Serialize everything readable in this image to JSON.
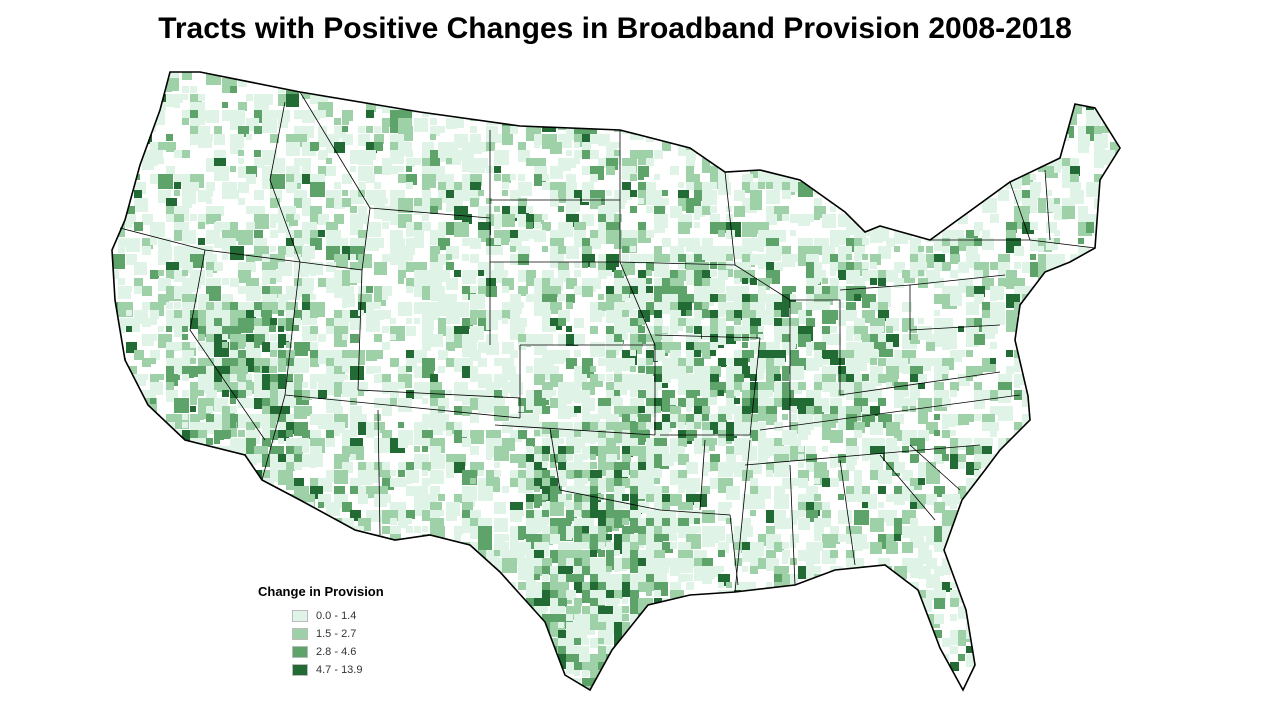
{
  "title": "Tracts with Positive Changes in Broadband Provision 2008-2018",
  "legend": {
    "title": "Change in Provision",
    "classes": [
      {
        "label": "0.0 - 1.4",
        "color": "#dff3e6"
      },
      {
        "label": "1.5 - 2.7",
        "color": "#9fd1a8"
      },
      {
        "label": "2.8 - 4.6",
        "color": "#5da36a"
      },
      {
        "label": "4.7 - 13.9",
        "color": "#236b34"
      }
    ]
  },
  "map": {
    "region": "Contiguous United States",
    "boundary_color": "#000000",
    "background_color": "#ffffff"
  }
}
